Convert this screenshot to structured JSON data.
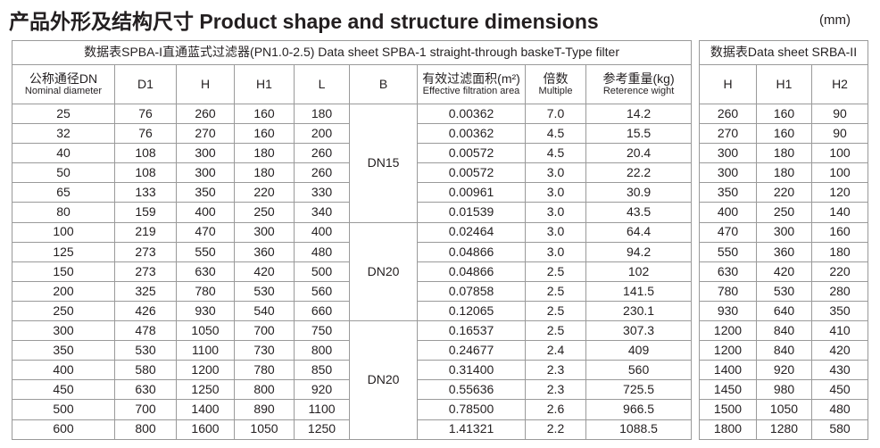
{
  "title": "产品外形及结构尺寸 Product shape and structure dimensions",
  "unit": "(mm)",
  "left_table": {
    "caption": "数据表SPBA-I直通蓝式过滤器(PN1.0-2.5) Data sheet SPBA-1 straight-through baskeT-Type filter",
    "columns": [
      {
        "label": "公称通径DN",
        "sub": "Nominal diameter"
      },
      {
        "label": "D1"
      },
      {
        "label": "H"
      },
      {
        "label": "H1"
      },
      {
        "label": "L"
      },
      {
        "label": "B"
      },
      {
        "label": "有效过滤面积(m²)",
        "sub": "Effective filtration area"
      },
      {
        "label": "倍数",
        "sub": "Multiple"
      },
      {
        "label": "参考重量(kg)",
        "sub": "Reterence wight"
      }
    ],
    "b_groups": [
      "DN15",
      "DN20",
      "DN20"
    ],
    "rows": [
      [
        "25",
        "76",
        "260",
        "160",
        "180",
        "0.00362",
        "7.0",
        "14.2"
      ],
      [
        "32",
        "76",
        "270",
        "160",
        "200",
        "0.00362",
        "4.5",
        "15.5"
      ],
      [
        "40",
        "108",
        "300",
        "180",
        "260",
        "0.00572",
        "4.5",
        "20.4"
      ],
      [
        "50",
        "108",
        "300",
        "180",
        "260",
        "0.00572",
        "3.0",
        "22.2"
      ],
      [
        "65",
        "133",
        "350",
        "220",
        "330",
        "0.00961",
        "3.0",
        "30.9"
      ],
      [
        "80",
        "159",
        "400",
        "250",
        "340",
        "0.01539",
        "3.0",
        "43.5"
      ],
      [
        "100",
        "219",
        "470",
        "300",
        "400",
        "0.02464",
        "3.0",
        "64.4"
      ],
      [
        "125",
        "273",
        "550",
        "360",
        "480",
        "0.04866",
        "3.0",
        "94.2"
      ],
      [
        "150",
        "273",
        "630",
        "420",
        "500",
        "0.04866",
        "2.5",
        "102"
      ],
      [
        "200",
        "325",
        "780",
        "530",
        "560",
        "0.07858",
        "2.5",
        "141.5"
      ],
      [
        "250",
        "426",
        "930",
        "540",
        "660",
        "0.12065",
        "2.5",
        "230.1"
      ],
      [
        "300",
        "478",
        "1050",
        "700",
        "750",
        "0.16537",
        "2.5",
        "307.3"
      ],
      [
        "350",
        "530",
        "1100",
        "730",
        "800",
        "0.24677",
        "2.4",
        "409"
      ],
      [
        "400",
        "580",
        "1200",
        "780",
        "850",
        "0.31400",
        "2.3",
        "560"
      ],
      [
        "450",
        "630",
        "1250",
        "800",
        "920",
        "0.55636",
        "2.3",
        "725.5"
      ],
      [
        "500",
        "700",
        "1400",
        "890",
        "1100",
        "0.78500",
        "2.6",
        "966.5"
      ],
      [
        "600",
        "800",
        "1600",
        "1050",
        "1250",
        "1.41321",
        "2.2",
        "1088.5"
      ]
    ]
  },
  "right_table": {
    "caption": "数据表Data sheet SRBA-II",
    "columns": [
      {
        "label": "H"
      },
      {
        "label": "H1"
      },
      {
        "label": "H2"
      }
    ],
    "rows": [
      [
        "260",
        "160",
        "90"
      ],
      [
        "270",
        "160",
        "90"
      ],
      [
        "300",
        "180",
        "100"
      ],
      [
        "300",
        "180",
        "100"
      ],
      [
        "350",
        "220",
        "120"
      ],
      [
        "400",
        "250",
        "140"
      ],
      [
        "470",
        "300",
        "160"
      ],
      [
        "550",
        "360",
        "180"
      ],
      [
        "630",
        "420",
        "220"
      ],
      [
        "780",
        "530",
        "280"
      ],
      [
        "930",
        "640",
        "350"
      ],
      [
        "1200",
        "840",
        "410"
      ],
      [
        "1200",
        "840",
        "420"
      ],
      [
        "1400",
        "920",
        "430"
      ],
      [
        "1450",
        "980",
        "450"
      ],
      [
        "1500",
        "1050",
        "480"
      ],
      [
        "1800",
        "1280",
        "580"
      ]
    ]
  }
}
